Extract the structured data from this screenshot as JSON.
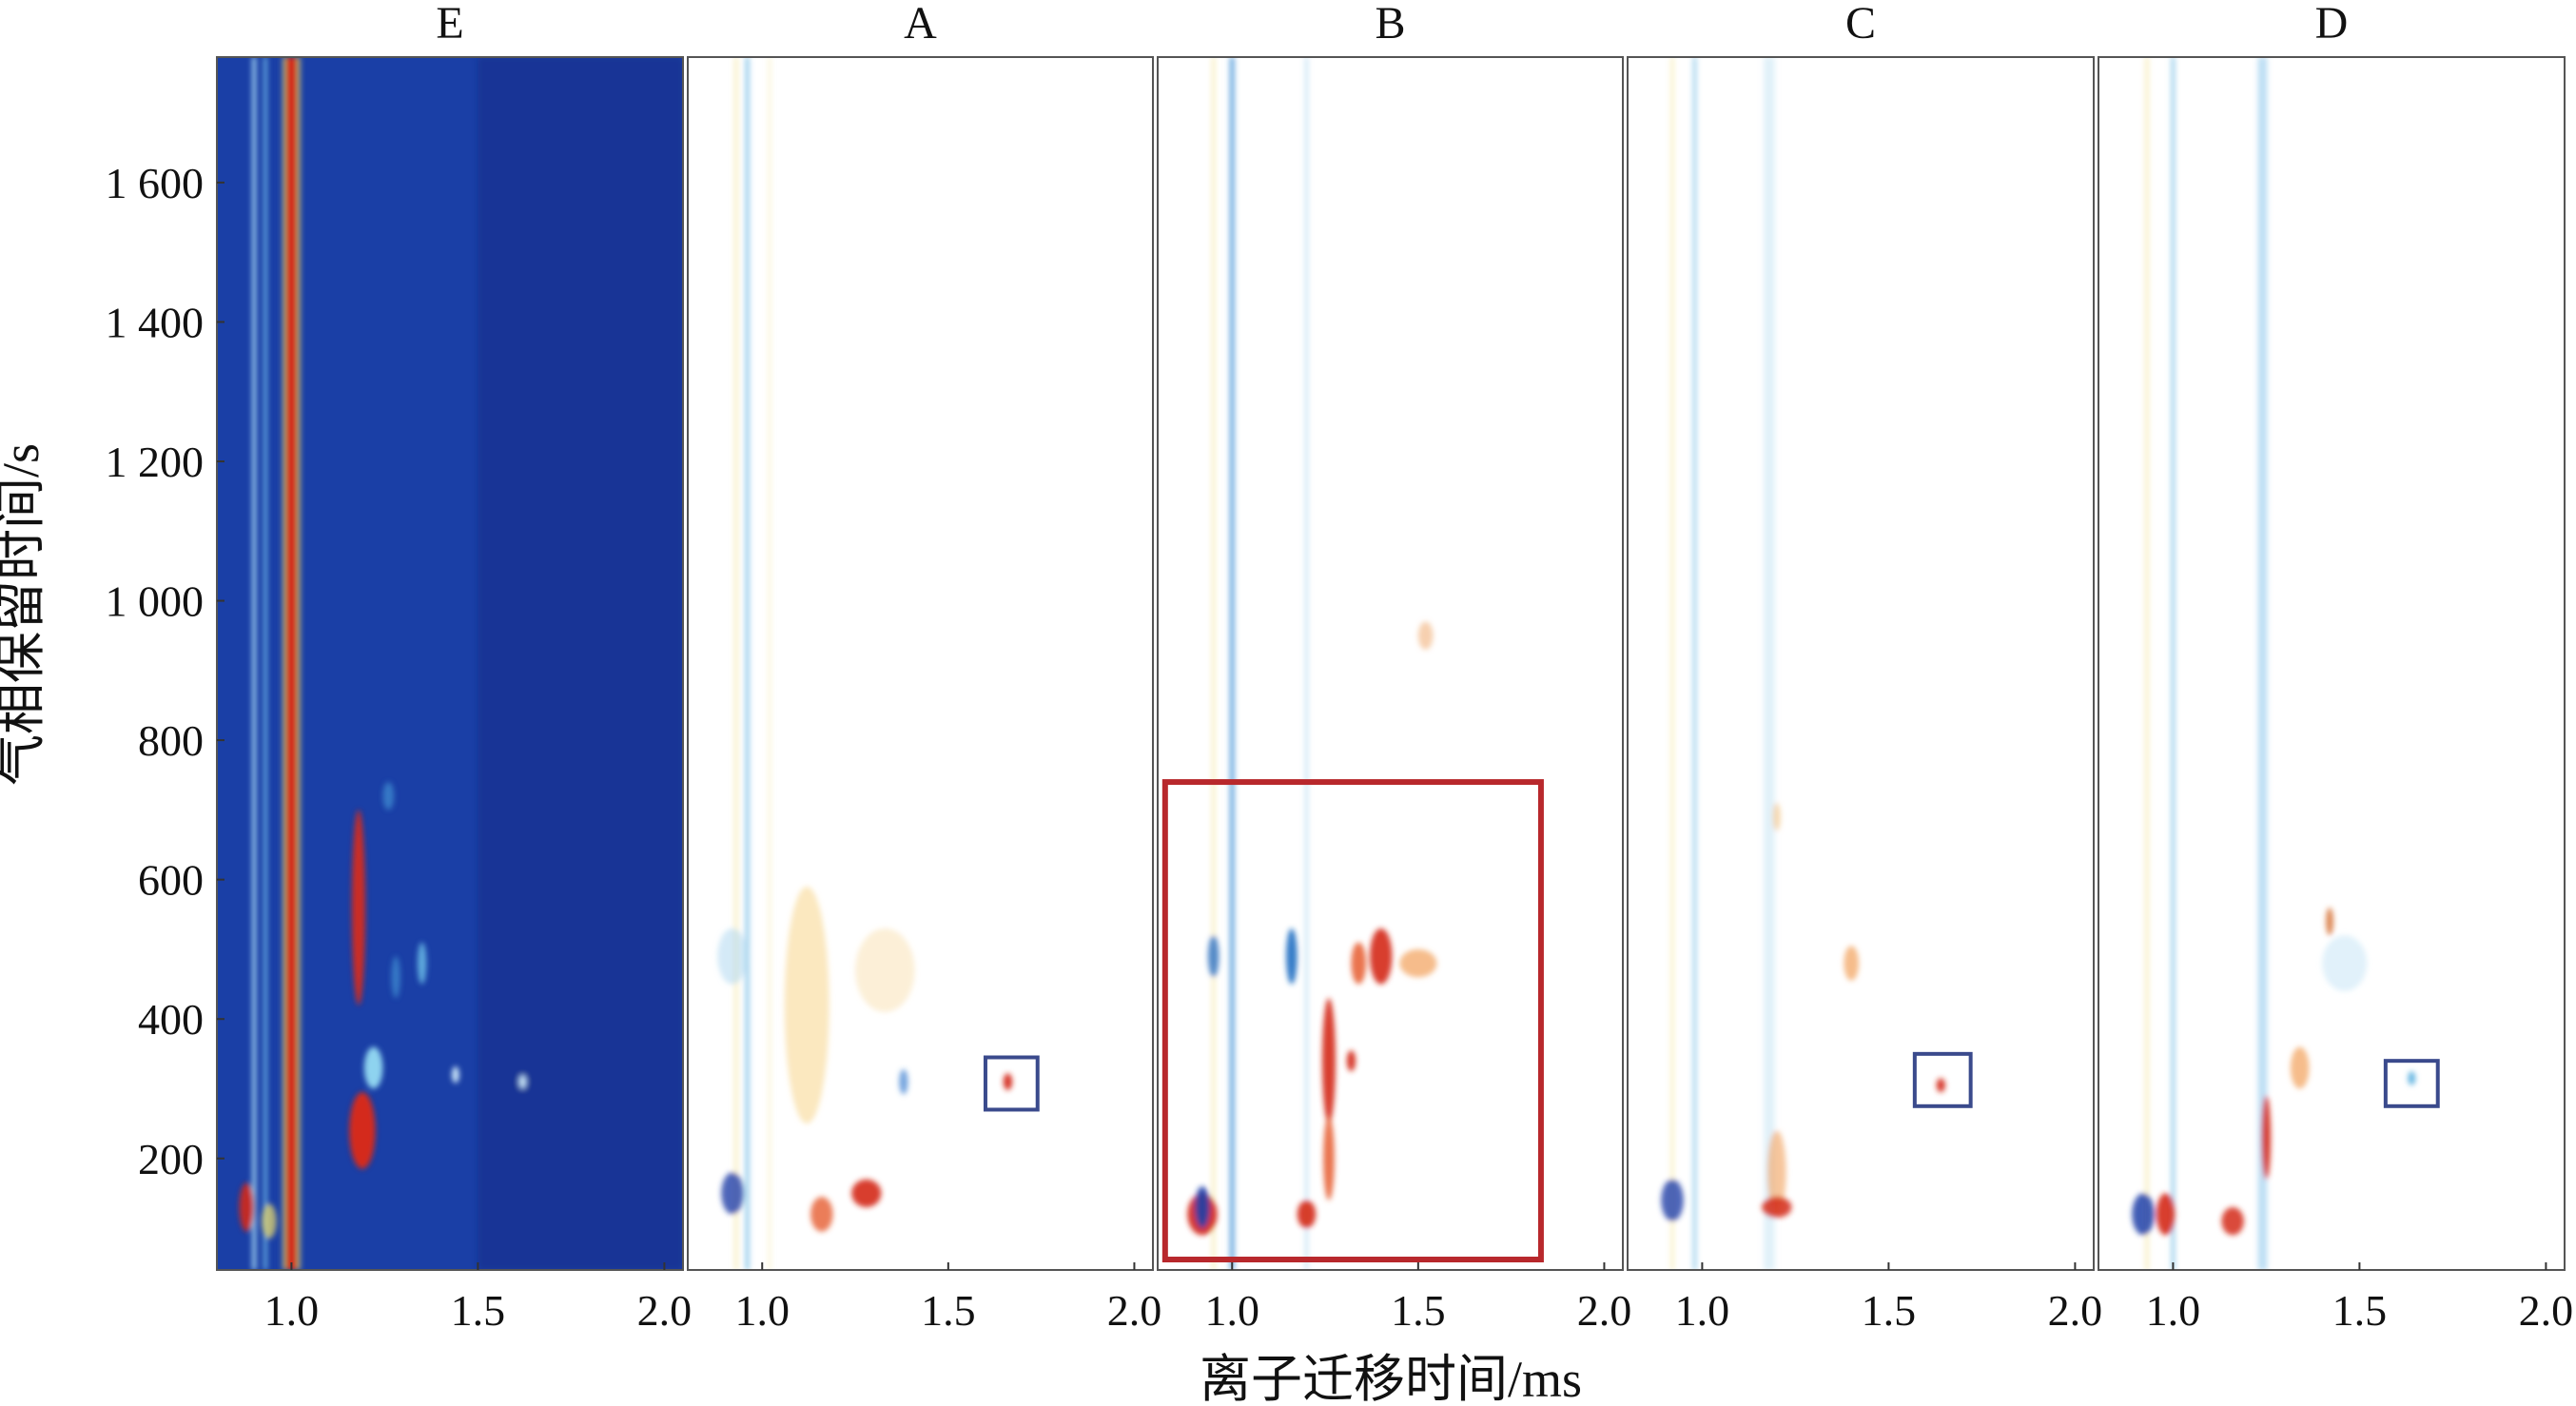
{
  "chart_data": {
    "type": "heatmap",
    "title": "",
    "xlabel": "离子迁移时间/ms",
    "ylabel": "气相保留时间/s",
    "xlim": [
      0.8,
      2.05
    ],
    "ylim": [
      40,
      1780
    ],
    "xticks": [
      1.0,
      1.5,
      2.0
    ],
    "xtick_labels": [
      "1.0",
      "1.5",
      "2.0"
    ],
    "yticks": [
      200,
      400,
      600,
      800,
      1000,
      1200,
      1400,
      1600
    ],
    "ytick_labels": [
      "200",
      "400",
      "600",
      "800",
      "1 000",
      "1 200",
      "1 400",
      "1 600"
    ],
    "panels": [
      {
        "label": "E",
        "mode": "reference",
        "background": "#1a3fa6",
        "streaks": [
          {
            "x": 0.9,
            "color": "#a8ddf5",
            "width": 0.012,
            "opacity": 0.85
          },
          {
            "x": 0.93,
            "color": "#7cc8ef",
            "width": 0.01,
            "opacity": 0.8
          },
          {
            "x": 1.0,
            "color": "#d42a1a",
            "width": 0.03,
            "opacity": 1
          },
          {
            "x": 1.02,
            "color": "#f3e36a",
            "width": 0.008,
            "opacity": 0.7
          },
          {
            "x": 0.98,
            "color": "#f3e36a",
            "width": 0.008,
            "opacity": 0.7
          }
        ],
        "peaks": [
          {
            "x": 1.18,
            "y": 560,
            "sx": 0.018,
            "sy": 140,
            "color": "#d42a1a",
            "opacity": 0.95
          },
          {
            "x": 1.19,
            "y": 240,
            "sx": 0.035,
            "sy": 55,
            "color": "#d42a1a",
            "opacity": 1
          },
          {
            "x": 1.22,
            "y": 330,
            "sx": 0.025,
            "sy": 30,
            "color": "#9be3f7",
            "opacity": 0.9
          },
          {
            "x": 1.35,
            "y": 480,
            "sx": 0.012,
            "sy": 30,
            "color": "#6fc6ec",
            "opacity": 0.8
          },
          {
            "x": 1.28,
            "y": 460,
            "sx": 0.012,
            "sy": 30,
            "color": "#4a9fdc",
            "opacity": 0.6
          },
          {
            "x": 1.44,
            "y": 320,
            "sx": 0.01,
            "sy": 12,
            "color": "#d8f3ff",
            "opacity": 0.9
          },
          {
            "x": 1.62,
            "y": 310,
            "sx": 0.01,
            "sy": 10,
            "color": "#d8f3ff",
            "opacity": 0.9
          },
          {
            "x": 0.88,
            "y": 130,
            "sx": 0.02,
            "sy": 35,
            "color": "#d42a1a",
            "opacity": 0.9
          },
          {
            "x": 0.94,
            "y": 110,
            "sx": 0.02,
            "sy": 25,
            "color": "#f3e36a",
            "opacity": 0.7
          },
          {
            "x": 1.26,
            "y": 720,
            "sx": 0.015,
            "sy": 20,
            "color": "#4a9fdc",
            "opacity": 0.6
          }
        ]
      },
      {
        "label": "A",
        "mode": "difference",
        "background": "#ffffff",
        "streaks": [
          {
            "x": 0.96,
            "color": "#5ab0e0",
            "width": 0.012,
            "opacity": 0.6
          },
          {
            "x": 0.93,
            "color": "#f2e08a",
            "width": 0.01,
            "opacity": 0.5
          },
          {
            "x": 1.02,
            "color": "#f2e08a",
            "width": 0.008,
            "opacity": 0.35
          }
        ],
        "peaks": [
          {
            "x": 1.12,
            "y": 420,
            "sx": 0.06,
            "sy": 170,
            "color": "#f7d58a",
            "opacity": 0.55
          },
          {
            "x": 1.28,
            "y": 150,
            "sx": 0.04,
            "sy": 20,
            "color": "#d42a1a",
            "opacity": 0.9
          },
          {
            "x": 0.92,
            "y": 150,
            "sx": 0.03,
            "sy": 30,
            "color": "#1f3fa8",
            "opacity": 0.8
          },
          {
            "x": 1.16,
            "y": 120,
            "sx": 0.03,
            "sy": 25,
            "color": "#e65c2e",
            "opacity": 0.8
          },
          {
            "x": 1.38,
            "y": 310,
            "sx": 0.012,
            "sy": 18,
            "color": "#3a7fd0",
            "opacity": 0.7
          },
          {
            "x": 1.66,
            "y": 310,
            "sx": 0.012,
            "sy": 12,
            "color": "#d42a1a",
            "opacity": 0.95
          },
          {
            "x": 1.33,
            "y": 470,
            "sx": 0.08,
            "sy": 60,
            "color": "#f9e0b0",
            "opacity": 0.5
          },
          {
            "x": 0.92,
            "y": 490,
            "sx": 0.04,
            "sy": 40,
            "color": "#a9d6ef",
            "opacity": 0.5
          }
        ],
        "highlight_box": {
          "x0": 1.6,
          "x1": 1.74,
          "y0": 270,
          "y1": 345,
          "color": "#3a4a8c"
        }
      },
      {
        "label": "B",
        "mode": "difference",
        "background": "#ffffff",
        "streaks": [
          {
            "x": 1.0,
            "color": "#3a8fd6",
            "width": 0.014,
            "opacity": 0.7
          },
          {
            "x": 0.95,
            "color": "#f2e08a",
            "width": 0.01,
            "opacity": 0.5
          },
          {
            "x": 1.2,
            "color": "#5ab0e0",
            "width": 0.008,
            "opacity": 0.35
          }
        ],
        "peaks": [
          {
            "x": 1.4,
            "y": 490,
            "sx": 0.03,
            "sy": 40,
            "color": "#d42a1a",
            "opacity": 0.9
          },
          {
            "x": 1.34,
            "y": 480,
            "sx": 0.02,
            "sy": 30,
            "color": "#e65c2e",
            "opacity": 0.85
          },
          {
            "x": 1.5,
            "y": 480,
            "sx": 0.05,
            "sy": 20,
            "color": "#f2a05a",
            "opacity": 0.7
          },
          {
            "x": 1.26,
            "y": 340,
            "sx": 0.018,
            "sy": 90,
            "color": "#d42a1a",
            "opacity": 0.9
          },
          {
            "x": 1.32,
            "y": 340,
            "sx": 0.012,
            "sy": 15,
            "color": "#d42a1a",
            "opacity": 0.9
          },
          {
            "x": 1.26,
            "y": 200,
            "sx": 0.015,
            "sy": 60,
            "color": "#e65c2e",
            "opacity": 0.85
          },
          {
            "x": 0.92,
            "y": 120,
            "sx": 0.04,
            "sy": 30,
            "color": "#d42a1a",
            "opacity": 0.95
          },
          {
            "x": 0.92,
            "y": 130,
            "sx": 0.02,
            "sy": 30,
            "color": "#1f3fa8",
            "opacity": 0.9
          },
          {
            "x": 1.16,
            "y": 490,
            "sx": 0.015,
            "sy": 40,
            "color": "#1f6fc2",
            "opacity": 0.9
          },
          {
            "x": 0.95,
            "y": 490,
            "sx": 0.015,
            "sy": 30,
            "color": "#2a6fc0",
            "opacity": 0.8
          },
          {
            "x": 1.52,
            "y": 950,
            "sx": 0.02,
            "sy": 20,
            "color": "#f2b07a",
            "opacity": 0.6
          },
          {
            "x": 1.2,
            "y": 120,
            "sx": 0.025,
            "sy": 20,
            "color": "#d42a1a",
            "opacity": 0.9
          }
        ],
        "highlight_box": {
          "x0": 0.82,
          "x1": 1.83,
          "y0": 55,
          "y1": 740,
          "color": "#b8282c"
        }
      },
      {
        "label": "C",
        "mode": "difference",
        "background": "#ffffff",
        "streaks": [
          {
            "x": 0.98,
            "color": "#5ab0e0",
            "width": 0.01,
            "opacity": 0.55
          },
          {
            "x": 0.92,
            "color": "#f2e08a",
            "width": 0.01,
            "opacity": 0.45
          },
          {
            "x": 1.18,
            "color": "#a9d6ef",
            "width": 0.03,
            "opacity": 0.35
          }
        ],
        "peaks": [
          {
            "x": 1.2,
            "y": 180,
            "sx": 0.025,
            "sy": 60,
            "color": "#f2a05a",
            "opacity": 0.6
          },
          {
            "x": 1.2,
            "y": 130,
            "sx": 0.04,
            "sy": 15,
            "color": "#d42a1a",
            "opacity": 0.85
          },
          {
            "x": 0.92,
            "y": 140,
            "sx": 0.03,
            "sy": 30,
            "color": "#1f3fa8",
            "opacity": 0.8
          },
          {
            "x": 1.4,
            "y": 480,
            "sx": 0.02,
            "sy": 25,
            "color": "#f2a05a",
            "opacity": 0.7
          },
          {
            "x": 1.64,
            "y": 305,
            "sx": 0.012,
            "sy": 10,
            "color": "#d42a1a",
            "opacity": 0.9
          },
          {
            "x": 1.2,
            "y": 690,
            "sx": 0.008,
            "sy": 20,
            "color": "#f2c07a",
            "opacity": 0.6
          }
        ],
        "highlight_box": {
          "x0": 1.57,
          "x1": 1.72,
          "y0": 275,
          "y1": 350,
          "color": "#3a4a8c"
        }
      },
      {
        "label": "D",
        "mode": "difference",
        "background": "#ffffff",
        "streaks": [
          {
            "x": 1.0,
            "color": "#5ab0e0",
            "width": 0.01,
            "opacity": 0.6
          },
          {
            "x": 0.93,
            "color": "#f2e08a",
            "width": 0.01,
            "opacity": 0.5
          },
          {
            "x": 1.24,
            "color": "#6fb8e6",
            "width": 0.025,
            "opacity": 0.45
          }
        ],
        "peaks": [
          {
            "x": 1.25,
            "y": 230,
            "sx": 0.012,
            "sy": 60,
            "color": "#d42a1a",
            "opacity": 0.9
          },
          {
            "x": 0.92,
            "y": 120,
            "sx": 0.03,
            "sy": 30,
            "color": "#1f3fa8",
            "opacity": 0.85
          },
          {
            "x": 0.98,
            "y": 120,
            "sx": 0.025,
            "sy": 30,
            "color": "#d42a1a",
            "opacity": 0.9
          },
          {
            "x": 1.16,
            "y": 110,
            "sx": 0.03,
            "sy": 20,
            "color": "#d42a1a",
            "opacity": 0.85
          },
          {
            "x": 1.42,
            "y": 540,
            "sx": 0.01,
            "sy": 20,
            "color": "#d46a2a",
            "opacity": 0.8
          },
          {
            "x": 1.34,
            "y": 330,
            "sx": 0.025,
            "sy": 30,
            "color": "#f2a05a",
            "opacity": 0.7
          },
          {
            "x": 1.64,
            "y": 315,
            "sx": 0.01,
            "sy": 10,
            "color": "#5ab0e0",
            "opacity": 0.9
          },
          {
            "x": 1.46,
            "y": 480,
            "sx": 0.06,
            "sy": 40,
            "color": "#cde8f6",
            "opacity": 0.6
          }
        ],
        "highlight_box": {
          "x0": 1.57,
          "x1": 1.71,
          "y0": 275,
          "y1": 340,
          "color": "#3a4a8c"
        }
      }
    ]
  }
}
